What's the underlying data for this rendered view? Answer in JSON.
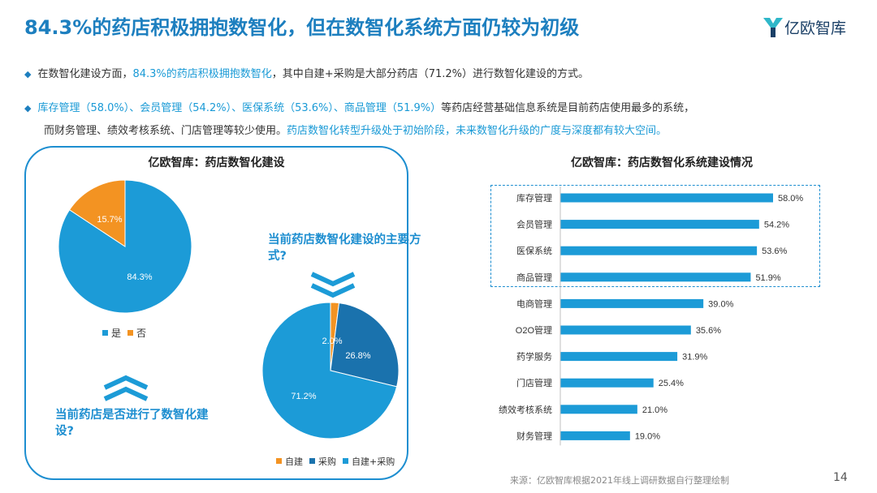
{
  "header": {
    "title": "84.3%的药店积极拥抱数智化，但在数智化系统方面仍较为初级",
    "brand": "亿欧智库"
  },
  "bullets": {
    "b1_pre": "在数智化建设方面，",
    "b1_hl": "84.3%的药店积极拥抱数智化",
    "b1_post": "，其中自建+采购是大部分药店（71.2%）进行数智化建设的方式。",
    "b2_hl": "库存管理（58.0%）、会员管理（54.2%）、医保系统（53.6%）、商品管理（51.9%）",
    "b2_post": "等药店经营基础信息系统是目前药店使用最多的系统，",
    "b2_line2_pre": "而财务管理、绩效考核系统、门店管理等较少使用。",
    "b2_line2_hl": "药店数智化转型升级处于初始阶段，未来数智化升级的广度与深度都有较大空间。"
  },
  "left_panel": {
    "title": "亿欧智库：药店数智化建设",
    "question_top": "当前药店数智化建设的主要方式?",
    "question_bottom": "当前药店是否进行了数智化建设?"
  },
  "right_panel": {
    "title": "亿欧智库：药店数智化系统建设情况"
  },
  "footer": {
    "source": "来源：亿欧智库根据2021年线上调研数据自行整理绘制",
    "page_number": "14"
  },
  "colors": {
    "primary": "#1c9bd7",
    "dark_blue": "#1a72ad",
    "orange": "#f39322",
    "title_blue": "#1d7fbf"
  },
  "chart_data": [
    {
      "type": "pie",
      "title": "",
      "labels": [
        "是",
        "否"
      ],
      "values": [
        84.3,
        15.7
      ],
      "value_labels": [
        "84.3%",
        "15.7%"
      ],
      "colors": [
        "#1c9bd7",
        "#f39322"
      ],
      "legend_position": "bottom"
    },
    {
      "type": "pie",
      "title": "",
      "labels": [
        "自建",
        "采购",
        "自建+采购"
      ],
      "values": [
        2.0,
        26.8,
        71.2
      ],
      "value_labels": [
        "2.0%",
        "26.8%",
        "71.2%"
      ],
      "colors": [
        "#f39322",
        "#1a72ad",
        "#1c9bd7"
      ],
      "legend_position": "bottom"
    },
    {
      "type": "bar",
      "orientation": "horizontal",
      "title": "",
      "categories": [
        "库存管理",
        "会员管理",
        "医保系统",
        "商品管理",
        "电商管理",
        "O2O管理",
        "药学服务",
        "门店管理",
        "绩效考核系统",
        "财务管理"
      ],
      "values": [
        58.0,
        54.2,
        53.6,
        51.9,
        39.0,
        35.6,
        31.9,
        25.4,
        21.0,
        19.0
      ],
      "value_labels": [
        "58.0%",
        "54.2%",
        "53.6%",
        "51.9%",
        "39.0%",
        "35.6%",
        "31.9%",
        "25.4%",
        "21.0%",
        "19.0%"
      ],
      "highlighted_categories": [
        "库存管理",
        "会员管理",
        "医保系统",
        "商品管理"
      ],
      "xlim": [
        0,
        60
      ],
      "color": "#1c9bd7"
    }
  ]
}
